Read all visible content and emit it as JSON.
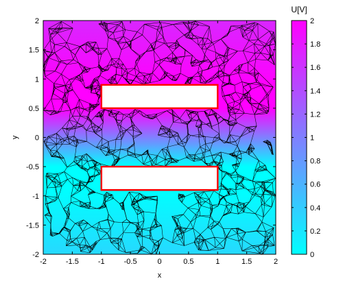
{
  "chart_data": {
    "type": "heatmap",
    "title": "",
    "xlabel": "x",
    "ylabel": "y",
    "xlim": [
      -2,
      2
    ],
    "ylim": [
      -2,
      2
    ],
    "x_ticks": [
      -2,
      -1.5,
      -1,
      -0.5,
      0,
      0.5,
      1,
      1.5,
      2
    ],
    "y_ticks": [
      -2,
      -1.5,
      -1,
      -0.5,
      0,
      0.5,
      1,
      1.5,
      2
    ],
    "x_tick_labels": [
      "-2",
      "-1.5",
      "-1",
      "-0.5",
      "0",
      "0.5",
      "1",
      "1.5",
      "2"
    ],
    "y_tick_labels": [
      "-2",
      "-1.5",
      "-1",
      "-0.5",
      "0",
      "0.5",
      "1",
      "1.5",
      "2"
    ],
    "colorbar": {
      "title": "U[V]",
      "range": [
        0,
        2
      ],
      "ticks": [
        0,
        0.2,
        0.4,
        0.6,
        0.8,
        1,
        1.2,
        1.4,
        1.6,
        1.8,
        2
      ],
      "tick_labels": [
        "0",
        "0.2",
        "0.4",
        "0.6",
        "0.8",
        "1",
        "1.2",
        "1.4",
        "1.6",
        "1.8",
        "2"
      ],
      "colormap": "cool",
      "color_low": "#00ffff",
      "color_high": "#ff00ff"
    },
    "electrodes": [
      {
        "x_range": [
          -1,
          1
        ],
        "y_range": [
          0.5,
          0.9
        ],
        "potential": 2
      },
      {
        "x_range": [
          -1,
          1
        ],
        "y_range": [
          -0.9,
          -0.5
        ],
        "potential": 0
      }
    ],
    "mesh": "triangular",
    "grid": false,
    "colors": {
      "mesh_line": "#000000",
      "electrode_outline": "#ff0000",
      "electrode_fill": "#ffffff",
      "axes": "#000000"
    }
  }
}
